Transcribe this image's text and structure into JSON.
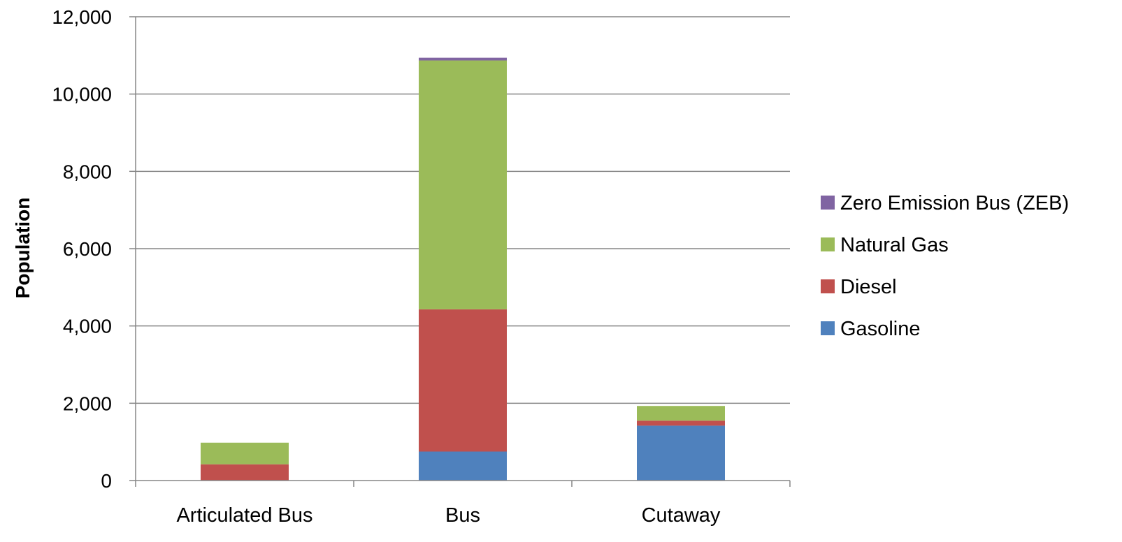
{
  "chart_data": {
    "type": "bar",
    "stacked": true,
    "categories": [
      "Articulated Bus",
      "Bus",
      "Cutaway"
    ],
    "series": [
      {
        "name": "Gasoline",
        "values": [
          0,
          750,
          1420
        ],
        "color": "#4F81BD"
      },
      {
        "name": "Diesel",
        "values": [
          420,
          3680,
          130
        ],
        "color": "#C0504D"
      },
      {
        "name": "Natural Gas",
        "values": [
          560,
          6440,
          380
        ],
        "color": "#9BBB59"
      },
      {
        "name": "Zero Emission Bus (ZEB)",
        "values": [
          0,
          70,
          0
        ],
        "color": "#8064A2"
      }
    ],
    "ylabel": "Population",
    "xlabel": "",
    "ylim": [
      0,
      12000
    ],
    "yticks": [
      0,
      2000,
      4000,
      6000,
      8000,
      10000,
      12000
    ],
    "ytick_labels": [
      "0",
      "2,000",
      "4,000",
      "6,000",
      "8,000",
      "10,000",
      "12,000"
    ],
    "grid": true,
    "legend_position": "right",
    "legend_order": [
      "Zero Emission Bus (ZEB)",
      "Natural Gas",
      "Diesel",
      "Gasoline"
    ]
  }
}
